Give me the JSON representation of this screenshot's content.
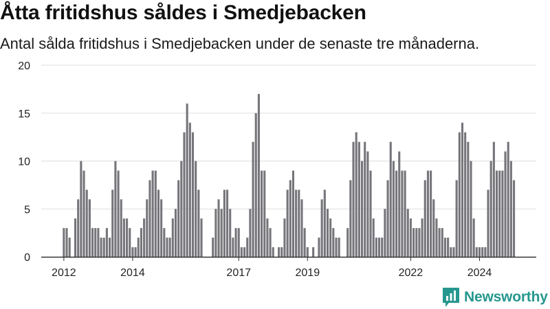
{
  "header": {
    "title": "Åtta fritidshus såldes i Smedjebacken",
    "subtitle": "Antal sålda fritidshus i Smedjebacken under de senaste tre månaderna."
  },
  "brand": {
    "name": "Newsworthy",
    "icon": "newsworthy-logo-icon"
  },
  "colors": {
    "bar": "#75757a",
    "highlight": "#1a9a8e",
    "grid": "#dddddd",
    "axis": "#333333",
    "brand": "#25978f"
  },
  "chart_data": {
    "type": "bar",
    "x_ticks": [
      "2012",
      "2014",
      "2017",
      "2019",
      "2022",
      "2024"
    ],
    "y_ticks": [
      "0",
      "5",
      "10",
      "15",
      "20"
    ],
    "ylim": [
      0,
      20
    ],
    "grid": true,
    "values": [
      3,
      3,
      2,
      0,
      4,
      6,
      10,
      9,
      7,
      6,
      3,
      3,
      3,
      2,
      2,
      3,
      2,
      7,
      10,
      9,
      6,
      4,
      4,
      3,
      1,
      1,
      2,
      3,
      4,
      6,
      8,
      9,
      9,
      7,
      6,
      3,
      2,
      2,
      4,
      5,
      8,
      10,
      13,
      16,
      14,
      13,
      10,
      7,
      4,
      0,
      0,
      0,
      2,
      5,
      6,
      5,
      7,
      7,
      5,
      2,
      3,
      3,
      1,
      1,
      2,
      5,
      12,
      15,
      17,
      9,
      9,
      4,
      3,
      1,
      0,
      1,
      1,
      4,
      7,
      8,
      9,
      7,
      7,
      6,
      3,
      1,
      0,
      1,
      0,
      2,
      6,
      7,
      5,
      4,
      3,
      2,
      2,
      0,
      0,
      3,
      8,
      12,
      13,
      12,
      10,
      12,
      11,
      9,
      4,
      2,
      2,
      2,
      5,
      8,
      12,
      10,
      9,
      11,
      9,
      9,
      5,
      4,
      3,
      3,
      3,
      4,
      8,
      9,
      9,
      6,
      4,
      3,
      3,
      2,
      2,
      1,
      1,
      8,
      13,
      14,
      13,
      12,
      10,
      4,
      1,
      1,
      1,
      1,
      7,
      10,
      12,
      9,
      9,
      9,
      11,
      12,
      10,
      8
    ],
    "highlight_index": 163,
    "highlight_label": "8"
  }
}
